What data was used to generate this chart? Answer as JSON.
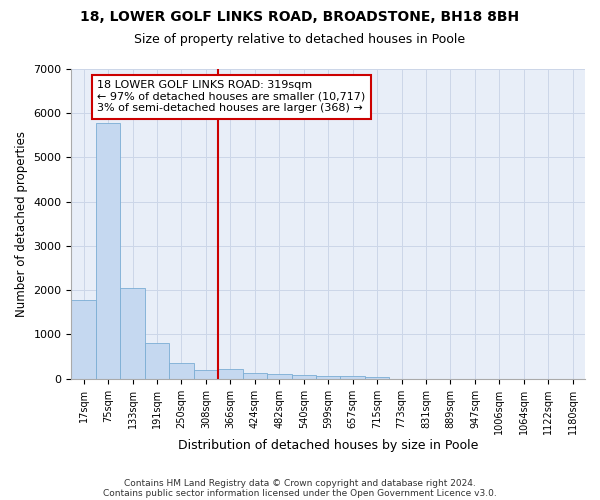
{
  "title1": "18, LOWER GOLF LINKS ROAD, BROADSTONE, BH18 8BH",
  "title2": "Size of property relative to detached houses in Poole",
  "xlabel": "Distribution of detached houses by size in Poole",
  "ylabel": "Number of detached properties",
  "bin_labels": [
    "17sqm",
    "75sqm",
    "133sqm",
    "191sqm",
    "250sqm",
    "308sqm",
    "366sqm",
    "424sqm",
    "482sqm",
    "540sqm",
    "599sqm",
    "657sqm",
    "715sqm",
    "773sqm",
    "831sqm",
    "889sqm",
    "947sqm",
    "1006sqm",
    "1064sqm",
    "1122sqm",
    "1180sqm"
  ],
  "bar_heights": [
    1780,
    5780,
    2060,
    800,
    350,
    200,
    220,
    120,
    105,
    80,
    60,
    55,
    50,
    0,
    0,
    0,
    0,
    0,
    0,
    0,
    0
  ],
  "bar_color": "#c5d8f0",
  "bar_edge_color": "#7badd4",
  "grid_color": "#ccd6e8",
  "background_color": "#e8eef8",
  "vline_x": 5.5,
  "vline_color": "#cc0000",
  "annotation_line1": "18 LOWER GOLF LINKS ROAD: 319sqm",
  "annotation_line2": "← 97% of detached houses are smaller (10,717)",
  "annotation_line3": "3% of semi-detached houses are larger (368) →",
  "annotation_box_color": "#cc0000",
  "ylim": [
    0,
    7000
  ],
  "yticks": [
    0,
    1000,
    2000,
    3000,
    4000,
    5000,
    6000,
    7000
  ],
  "footer1": "Contains HM Land Registry data © Crown copyright and database right 2024.",
  "footer2": "Contains public sector information licensed under the Open Government Licence v3.0."
}
